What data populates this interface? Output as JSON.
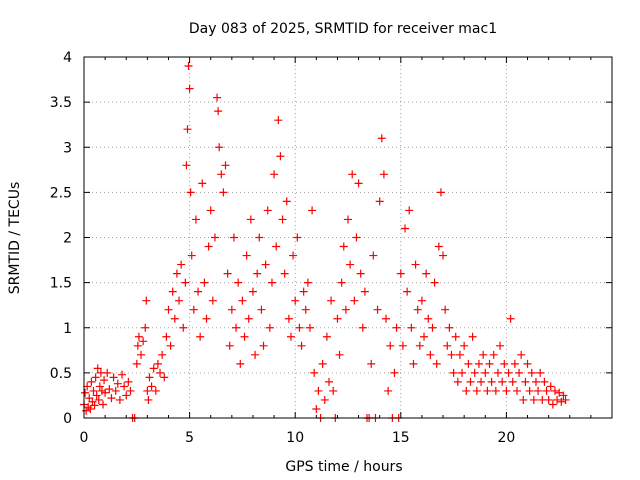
{
  "chart_data": {
    "type": "scatter",
    "title": "Day 083 of 2025, SRMTID for receiver mac1",
    "xlabel": "GPS time / hours",
    "ylabel": "SRMTID / TECUs",
    "xlim": [
      0,
      25
    ],
    "ylim": [
      0,
      4
    ],
    "x_ticks": [
      0,
      5,
      10,
      15,
      20
    ],
    "x_tick_labels": [
      "0",
      "5",
      "10",
      "15",
      "20"
    ],
    "y_ticks": [
      0,
      0.5,
      1,
      1.5,
      2,
      2.5,
      3,
      3.5,
      4
    ],
    "y_tick_labels": [
      "0",
      "0.5",
      "1",
      "1.5",
      "2",
      "2.5",
      "3",
      "3.5",
      "4"
    ],
    "grid": true,
    "marker": "+",
    "series": [
      {
        "name": "mac1",
        "color": "#ff0000",
        "points": [
          [
            0.0,
            0.15
          ],
          [
            0.05,
            0.28
          ],
          [
            0.1,
            0.08
          ],
          [
            0.15,
            0.35
          ],
          [
            0.2,
            0.12
          ],
          [
            0.25,
            0.22
          ],
          [
            0.3,
            0.1
          ],
          [
            0.35,
            0.4
          ],
          [
            0.4,
            0.18
          ],
          [
            0.45,
            0.3
          ],
          [
            0.5,
            0.14
          ],
          [
            0.55,
            0.45
          ],
          [
            0.6,
            0.25
          ],
          [
            0.65,
            0.55
          ],
          [
            0.7,
            0.2
          ],
          [
            0.75,
            0.35
          ],
          [
            0.8,
            0.5
          ],
          [
            0.85,
            0.3
          ],
          [
            0.9,
            0.15
          ],
          [
            0.95,
            0.42
          ],
          [
            1.0,
            0.28
          ],
          [
            1.1,
            0.5
          ],
          [
            1.2,
            0.32
          ],
          [
            1.3,
            0.22
          ],
          [
            1.4,
            0.45
          ],
          [
            1.5,
            0.3
          ],
          [
            1.6,
            0.38
          ],
          [
            1.7,
            0.2
          ],
          [
            1.8,
            0.48
          ],
          [
            1.9,
            0.35
          ],
          [
            2.0,
            0.25
          ],
          [
            2.1,
            0.4
          ],
          [
            2.2,
            0.3
          ],
          [
            2.3,
            0.0
          ],
          [
            2.4,
            0.0
          ],
          [
            2.5,
            0.6
          ],
          [
            2.55,
            0.8
          ],
          [
            2.6,
            0.9
          ],
          [
            2.7,
            0.7
          ],
          [
            2.8,
            0.85
          ],
          [
            2.9,
            1.0
          ],
          [
            2.95,
            1.3
          ],
          [
            3.0,
            0.3
          ],
          [
            3.05,
            0.2
          ],
          [
            3.1,
            0.45
          ],
          [
            3.2,
            0.35
          ],
          [
            3.3,
            0.55
          ],
          [
            3.4,
            0.3
          ],
          [
            3.5,
            0.6
          ],
          [
            3.6,
            0.5
          ],
          [
            3.7,
            0.7
          ],
          [
            3.8,
            0.45
          ],
          [
            3.9,
            0.9
          ],
          [
            4.0,
            1.2
          ],
          [
            4.1,
            0.8
          ],
          [
            4.2,
            1.4
          ],
          [
            4.3,
            1.1
          ],
          [
            4.4,
            1.6
          ],
          [
            4.5,
            1.3
          ],
          [
            4.6,
            1.7
          ],
          [
            4.7,
            1.0
          ],
          [
            4.8,
            1.5
          ],
          [
            4.85,
            2.8
          ],
          [
            4.9,
            3.2
          ],
          [
            4.95,
            3.9
          ],
          [
            5.0,
            3.65
          ],
          [
            5.05,
            2.5
          ],
          [
            5.1,
            1.8
          ],
          [
            5.2,
            1.2
          ],
          [
            5.3,
            2.2
          ],
          [
            5.4,
            1.4
          ],
          [
            5.5,
            0.9
          ],
          [
            5.6,
            2.6
          ],
          [
            5.7,
            1.5
          ],
          [
            5.8,
            1.1
          ],
          [
            5.9,
            1.9
          ],
          [
            6.0,
            2.3
          ],
          [
            6.1,
            1.3
          ],
          [
            6.2,
            2.0
          ],
          [
            6.3,
            3.55
          ],
          [
            6.35,
            3.4
          ],
          [
            6.4,
            3.0
          ],
          [
            6.5,
            2.7
          ],
          [
            6.6,
            2.5
          ],
          [
            6.7,
            2.8
          ],
          [
            6.8,
            1.6
          ],
          [
            6.9,
            0.8
          ],
          [
            7.0,
            1.2
          ],
          [
            7.1,
            2.0
          ],
          [
            7.2,
            1.0
          ],
          [
            7.3,
            1.5
          ],
          [
            7.4,
            0.6
          ],
          [
            7.5,
            1.3
          ],
          [
            7.6,
            0.9
          ],
          [
            7.7,
            1.8
          ],
          [
            7.8,
            1.1
          ],
          [
            7.9,
            2.2
          ],
          [
            8.0,
            1.4
          ],
          [
            8.1,
            0.7
          ],
          [
            8.2,
            1.6
          ],
          [
            8.3,
            2.0
          ],
          [
            8.4,
            1.2
          ],
          [
            8.5,
            0.8
          ],
          [
            8.6,
            1.7
          ],
          [
            8.7,
            2.3
          ],
          [
            8.8,
            1.0
          ],
          [
            8.9,
            1.5
          ],
          [
            9.0,
            2.7
          ],
          [
            9.1,
            1.9
          ],
          [
            9.2,
            3.3
          ],
          [
            9.3,
            2.9
          ],
          [
            9.4,
            2.2
          ],
          [
            9.5,
            1.6
          ],
          [
            9.6,
            2.4
          ],
          [
            9.7,
            1.1
          ],
          [
            9.8,
            0.9
          ],
          [
            9.9,
            1.8
          ],
          [
            10.0,
            1.3
          ],
          [
            10.1,
            2.0
          ],
          [
            10.2,
            1.0
          ],
          [
            10.3,
            0.8
          ],
          [
            10.4,
            1.4
          ],
          [
            10.5,
            1.2
          ],
          [
            10.6,
            1.5
          ],
          [
            10.7,
            1.0
          ],
          [
            10.8,
            2.3
          ],
          [
            10.9,
            0.5
          ],
          [
            11.0,
            0.1
          ],
          [
            11.1,
            0.3
          ],
          [
            11.2,
            0.0
          ],
          [
            11.3,
            0.6
          ],
          [
            11.4,
            0.2
          ],
          [
            11.5,
            0.9
          ],
          [
            11.6,
            0.4
          ],
          [
            11.7,
            1.3
          ],
          [
            11.8,
            0.3
          ],
          [
            11.9,
            0.0
          ],
          [
            12.0,
            1.1
          ],
          [
            12.1,
            0.7
          ],
          [
            12.2,
            1.5
          ],
          [
            12.3,
            1.9
          ],
          [
            12.4,
            1.2
          ],
          [
            12.5,
            2.2
          ],
          [
            12.6,
            1.7
          ],
          [
            12.7,
            2.7
          ],
          [
            12.8,
            1.3
          ],
          [
            12.9,
            2.0
          ],
          [
            13.0,
            2.6
          ],
          [
            13.1,
            1.6
          ],
          [
            13.2,
            1.0
          ],
          [
            13.3,
            1.4
          ],
          [
            13.4,
            0.0
          ],
          [
            13.5,
            0.0
          ],
          [
            13.6,
            0.6
          ],
          [
            13.7,
            1.8
          ],
          [
            13.8,
            0.0
          ],
          [
            13.9,
            1.2
          ],
          [
            14.0,
            2.4
          ],
          [
            14.1,
            3.1
          ],
          [
            14.2,
            2.7
          ],
          [
            14.3,
            1.1
          ],
          [
            14.4,
            0.3
          ],
          [
            14.5,
            0.8
          ],
          [
            14.6,
            0.0
          ],
          [
            14.7,
            0.5
          ],
          [
            14.8,
            1.0
          ],
          [
            14.9,
            0.0
          ],
          [
            15.0,
            1.6
          ],
          [
            15.1,
            0.8
          ],
          [
            15.2,
            2.1
          ],
          [
            15.3,
            1.4
          ],
          [
            15.4,
            2.3
          ],
          [
            15.5,
            1.0
          ],
          [
            15.6,
            0.6
          ],
          [
            15.7,
            1.7
          ],
          [
            15.8,
            1.2
          ],
          [
            15.9,
            0.8
          ],
          [
            16.0,
            1.3
          ],
          [
            16.1,
            0.9
          ],
          [
            16.2,
            1.6
          ],
          [
            16.3,
            1.1
          ],
          [
            16.4,
            0.7
          ],
          [
            16.5,
            1.0
          ],
          [
            16.6,
            1.5
          ],
          [
            16.7,
            0.6
          ],
          [
            16.8,
            1.9
          ],
          [
            16.9,
            2.5
          ],
          [
            17.0,
            1.8
          ],
          [
            17.1,
            1.2
          ],
          [
            17.2,
            0.8
          ],
          [
            17.3,
            1.0
          ],
          [
            17.4,
            0.7
          ],
          [
            17.5,
            0.5
          ],
          [
            17.6,
            0.9
          ],
          [
            17.7,
            0.4
          ],
          [
            17.8,
            0.7
          ],
          [
            17.9,
            0.5
          ],
          [
            18.0,
            0.8
          ],
          [
            18.1,
            0.3
          ],
          [
            18.2,
            0.6
          ],
          [
            18.3,
            0.4
          ],
          [
            18.4,
            0.9
          ],
          [
            18.5,
            0.5
          ],
          [
            18.6,
            0.3
          ],
          [
            18.7,
            0.6
          ],
          [
            18.8,
            0.4
          ],
          [
            18.9,
            0.7
          ],
          [
            19.0,
            0.5
          ],
          [
            19.1,
            0.3
          ],
          [
            19.2,
            0.6
          ],
          [
            19.3,
            0.4
          ],
          [
            19.4,
            0.7
          ],
          [
            19.5,
            0.3
          ],
          [
            19.6,
            0.5
          ],
          [
            19.7,
            0.8
          ],
          [
            19.8,
            0.4
          ],
          [
            19.9,
            0.6
          ],
          [
            20.0,
            0.3
          ],
          [
            20.1,
            0.5
          ],
          [
            20.2,
            1.1
          ],
          [
            20.3,
            0.4
          ],
          [
            20.4,
            0.6
          ],
          [
            20.5,
            0.3
          ],
          [
            20.6,
            0.5
          ],
          [
            20.7,
            0.7
          ],
          [
            20.8,
            0.2
          ],
          [
            20.9,
            0.4
          ],
          [
            21.0,
            0.6
          ],
          [
            21.1,
            0.3
          ],
          [
            21.2,
            0.5
          ],
          [
            21.3,
            0.2
          ],
          [
            21.4,
            0.4
          ],
          [
            21.5,
            0.3
          ],
          [
            21.6,
            0.5
          ],
          [
            21.7,
            0.2
          ],
          [
            21.8,
            0.4
          ],
          [
            21.9,
            0.3
          ],
          [
            22.0,
            0.2
          ],
          [
            22.1,
            0.35
          ],
          [
            22.2,
            0.15
          ],
          [
            22.3,
            0.3
          ],
          [
            22.4,
            0.2
          ],
          [
            22.5,
            0.28
          ],
          [
            22.6,
            0.18
          ],
          [
            22.7,
            0.25
          ],
          [
            22.8,
            0.2
          ]
        ]
      }
    ]
  }
}
